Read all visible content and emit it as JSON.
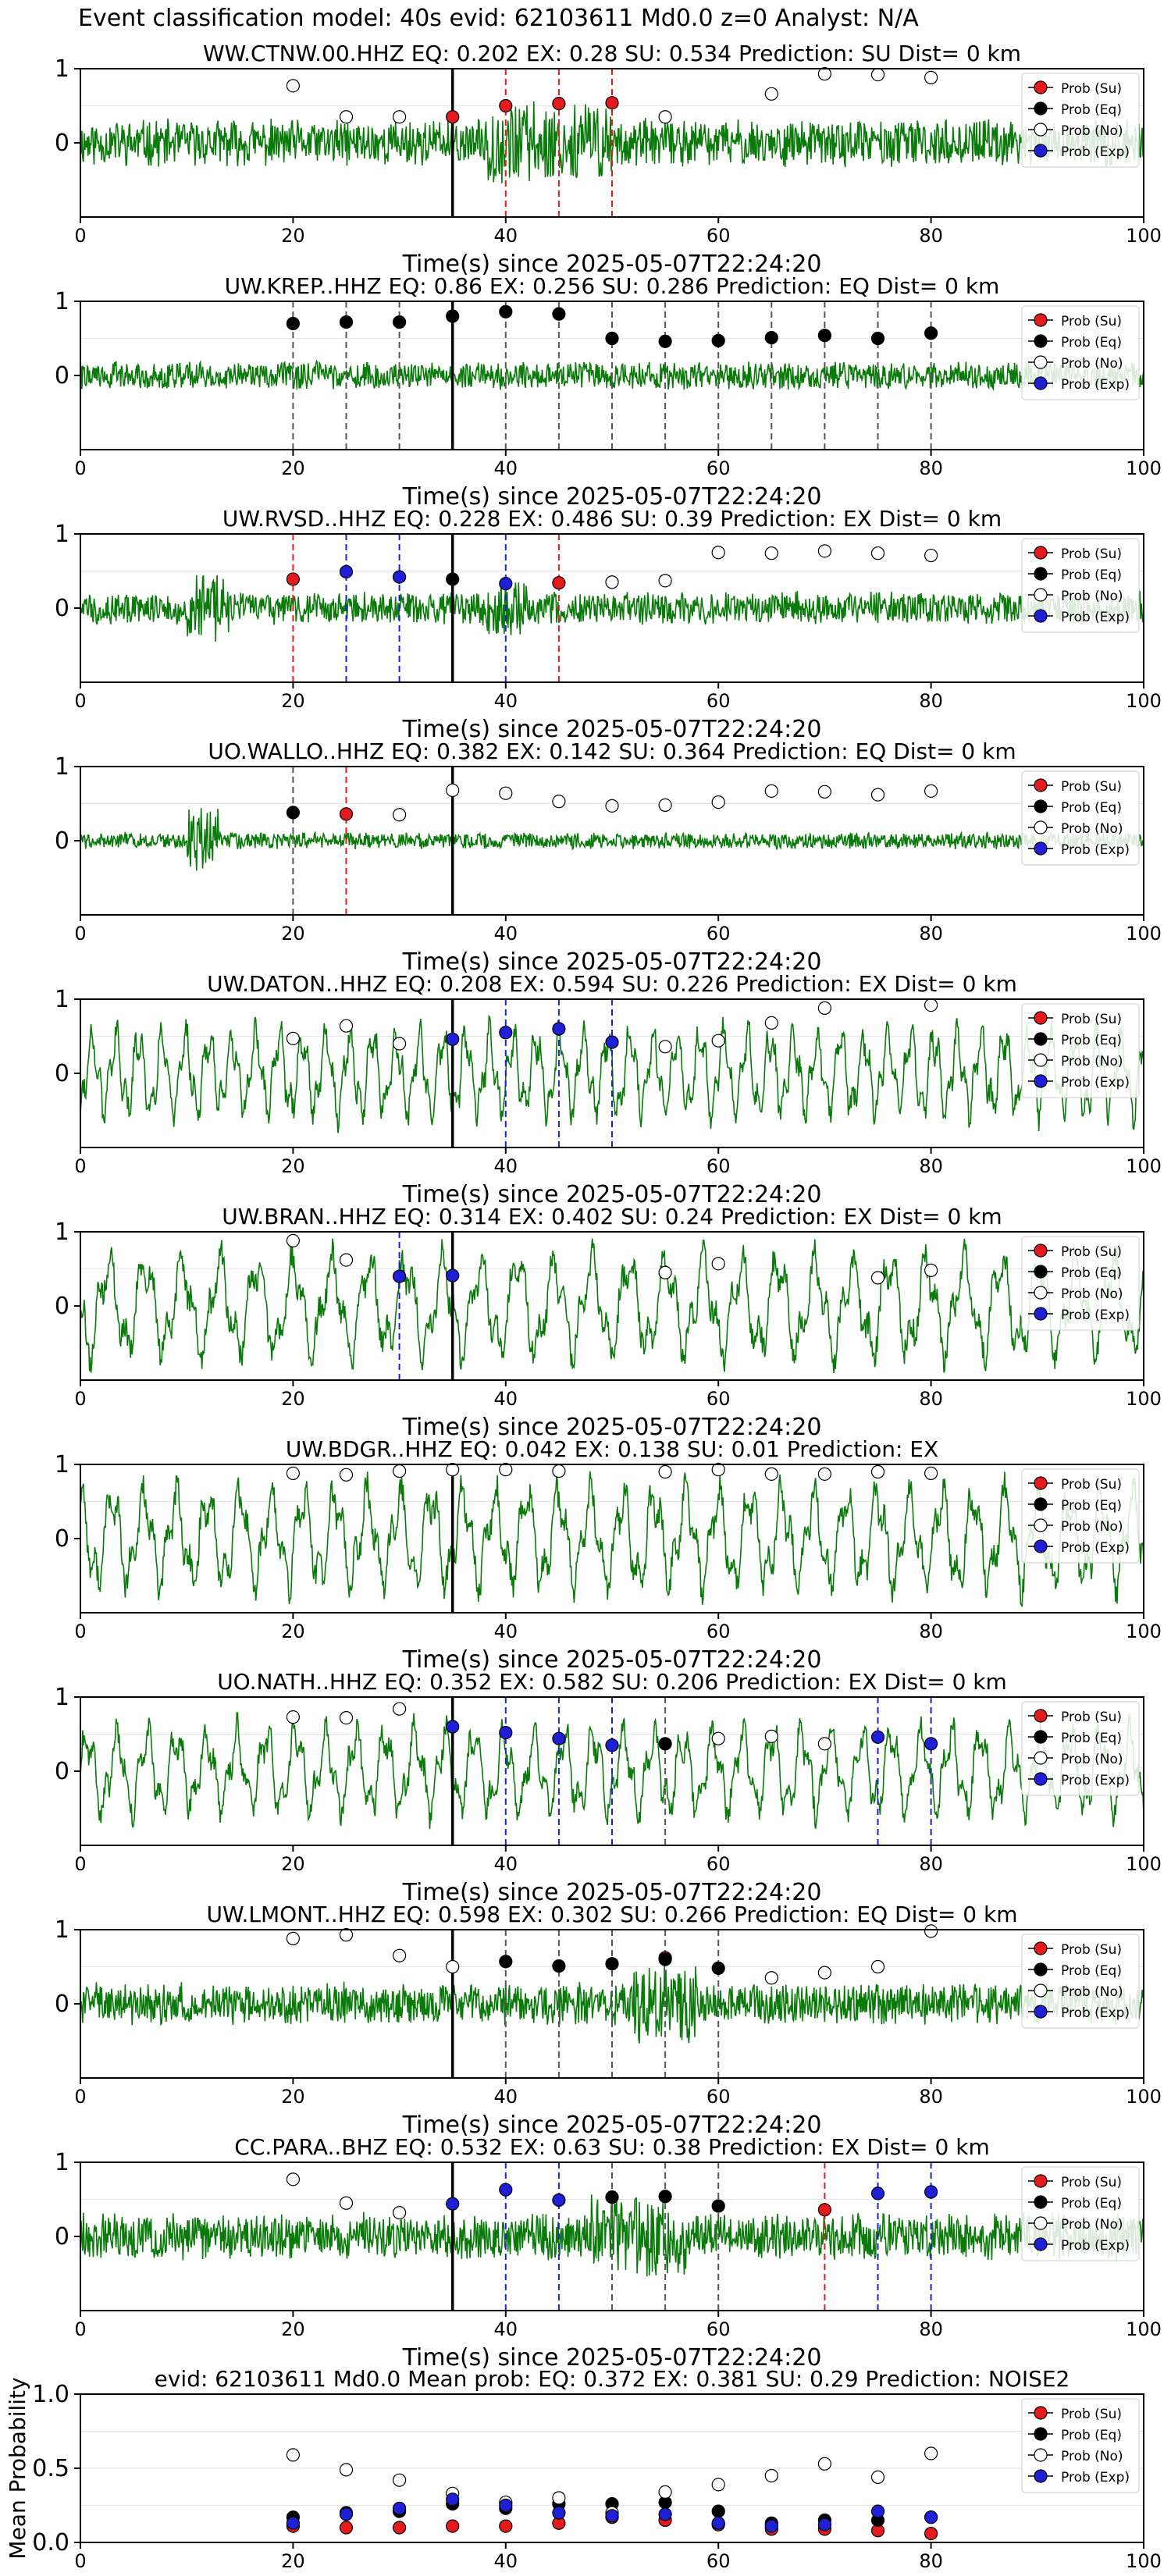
{
  "figure_title": "Event classification model: 40s evid: 62103611 Md0.0 z=0 Analyst: N/A",
  "legend_labels": [
    "Prob (Su)",
    "Prob (Eq)",
    "Prob (No)",
    "Prob (Exp)"
  ],
  "colors": {
    "su": "#e41a1c",
    "eq": "#000000",
    "no": "#ffffff",
    "exp": "#1f1fd6",
    "trace": "#0a7a0a",
    "pick": "#000000"
  },
  "chart_data": [
    {
      "type": "scatter",
      "title": "WW.CTNW.00.HHZ   EQ: 0.202  EX: 0.28  SU: 0.534   Prediction: SU    Dist= 0 km",
      "xlabel": "Time(s) since 2025-05-07T22:24:20",
      "xlim": [
        0,
        100
      ],
      "ylim": [
        -1,
        1
      ],
      "xticks": [
        0,
        20,
        40,
        60,
        80,
        100
      ],
      "yticks": [
        0,
        1
      ],
      "legend": "top-right",
      "pick_line": 35,
      "amp": 0.5,
      "seed": 11,
      "period": 0,
      "points": [
        [
          20,
          "no",
          0.77
        ],
        [
          25,
          "no",
          0.35
        ],
        [
          30,
          "no",
          0.35
        ],
        [
          35,
          "su",
          0.35
        ],
        [
          40,
          "su",
          0.5
        ],
        [
          45,
          "su",
          0.53
        ],
        [
          50,
          "su",
          0.54
        ],
        [
          55,
          "no",
          0.35
        ],
        [
          65,
          "no",
          0.66
        ],
        [
          70,
          "no",
          0.93
        ],
        [
          75,
          "no",
          0.92
        ],
        [
          80,
          "no",
          0.88
        ]
      ],
      "vlines": [
        [
          40,
          "su"
        ],
        [
          45,
          "su"
        ],
        [
          50,
          "su"
        ]
      ]
    },
    {
      "type": "scatter",
      "title": "UW.KREP..HHZ   EQ: 0.86  EX: 0.256  SU: 0.286   Prediction: EQ    Dist= 0 km",
      "xlabel": "Time(s) since 2025-05-07T22:24:20",
      "xlim": [
        0,
        100
      ],
      "ylim": [
        -1,
        1
      ],
      "xticks": [
        0,
        20,
        40,
        60,
        80,
        100
      ],
      "yticks": [
        0,
        1
      ],
      "legend": "top-right",
      "pick_line": 35,
      "amp": 0.3,
      "seed": 22,
      "period": 0,
      "points": [
        [
          20,
          "eq",
          0.7
        ],
        [
          25,
          "eq",
          0.72
        ],
        [
          30,
          "eq",
          0.72
        ],
        [
          35,
          "eq",
          0.8
        ],
        [
          40,
          "eq",
          0.86
        ],
        [
          45,
          "eq",
          0.83
        ],
        [
          50,
          "eq",
          0.5
        ],
        [
          55,
          "eq",
          0.46
        ],
        [
          60,
          "eq",
          0.47
        ],
        [
          65,
          "eq",
          0.51
        ],
        [
          70,
          "eq",
          0.54
        ],
        [
          75,
          "eq",
          0.5
        ],
        [
          80,
          "eq",
          0.57
        ]
      ],
      "vlines": [
        [
          20,
          "eq"
        ],
        [
          25,
          "eq"
        ],
        [
          30,
          "eq"
        ],
        [
          40,
          "eq"
        ],
        [
          45,
          "eq"
        ],
        [
          50,
          "eq"
        ],
        [
          55,
          "eq"
        ],
        [
          60,
          "eq"
        ],
        [
          65,
          "eq"
        ],
        [
          70,
          "eq"
        ],
        [
          75,
          "eq"
        ],
        [
          80,
          "eq"
        ]
      ]
    },
    {
      "type": "scatter",
      "title": "UW.RVSD..HHZ   EQ: 0.228  EX: 0.486  SU: 0.39   Prediction: EX    Dist= 0 km",
      "xlabel": "Time(s) since 2025-05-07T22:24:20",
      "xlim": [
        0,
        100
      ],
      "ylim": [
        -1,
        1
      ],
      "xticks": [
        0,
        20,
        40,
        60,
        80,
        100
      ],
      "yticks": [
        0,
        1
      ],
      "legend": "top-right",
      "pick_line": 35,
      "amp": 0.35,
      "seed": 33,
      "period": 0,
      "points": [
        [
          20,
          "su",
          0.39
        ],
        [
          25,
          "exp",
          0.49
        ],
        [
          30,
          "exp",
          0.42
        ],
        [
          35,
          "eq",
          0.39
        ],
        [
          40,
          "exp",
          0.33
        ],
        [
          45,
          "su",
          0.34
        ],
        [
          50,
          "no",
          0.35
        ],
        [
          55,
          "no",
          0.37
        ],
        [
          60,
          "no",
          0.75
        ],
        [
          65,
          "no",
          0.74
        ],
        [
          70,
          "no",
          0.77
        ],
        [
          75,
          "no",
          0.74
        ],
        [
          80,
          "no",
          0.71
        ]
      ],
      "vlines": [
        [
          20,
          "su"
        ],
        [
          25,
          "exp"
        ],
        [
          30,
          "exp"
        ],
        [
          40,
          "exp"
        ],
        [
          45,
          "su"
        ]
      ]
    },
    {
      "type": "scatter",
      "title": "UO.WALLO..HHZ   EQ: 0.382  EX: 0.142  SU: 0.364   Prediction: EQ     Dist= 0 km",
      "xlabel": "Time(s) since 2025-05-07T22:24:20",
      "xlim": [
        0,
        100
      ],
      "ylim": [
        -1,
        1
      ],
      "xticks": [
        0,
        20,
        40,
        60,
        80,
        100
      ],
      "yticks": [
        0,
        1
      ],
      "legend": "top-right",
      "pick_line": 35,
      "amp": 0.18,
      "seed": 44,
      "period": 0,
      "points": [
        [
          20,
          "eq",
          0.38
        ],
        [
          25,
          "su",
          0.36
        ],
        [
          30,
          "no",
          0.35
        ],
        [
          35,
          "no",
          0.68
        ],
        [
          40,
          "no",
          0.64
        ],
        [
          45,
          "no",
          0.53
        ],
        [
          50,
          "no",
          0.47
        ],
        [
          55,
          "no",
          0.48
        ],
        [
          60,
          "no",
          0.52
        ],
        [
          65,
          "no",
          0.67
        ],
        [
          70,
          "no",
          0.66
        ],
        [
          75,
          "no",
          0.62
        ],
        [
          80,
          "no",
          0.67
        ]
      ],
      "vlines": [
        [
          20,
          "eq"
        ],
        [
          25,
          "su"
        ]
      ]
    },
    {
      "type": "scatter",
      "title": "UW.DATON..HHZ   EQ: 0.208  EX: 0.594  SU: 0.226   Prediction: EX    Dist= 0 km",
      "xlabel": "Time(s) since 2025-05-07T22:24:20",
      "xlim": [
        0,
        100
      ],
      "ylim": [
        -1,
        1
      ],
      "xticks": [
        0,
        20,
        40,
        60,
        80,
        100
      ],
      "yticks": [
        0,
        1
      ],
      "legend": "top-right",
      "pick_line": 35,
      "amp": 0.6,
      "seed": 55,
      "period": 2.2,
      "points": [
        [
          20,
          "no",
          0.47
        ],
        [
          25,
          "no",
          0.64
        ],
        [
          30,
          "no",
          0.4
        ],
        [
          35,
          "exp",
          0.46
        ],
        [
          40,
          "exp",
          0.55
        ],
        [
          45,
          "exp",
          0.6
        ],
        [
          50,
          "exp",
          0.42
        ],
        [
          55,
          "no",
          0.36
        ],
        [
          60,
          "no",
          0.44
        ],
        [
          65,
          "no",
          0.68
        ],
        [
          70,
          "no",
          0.88
        ],
        [
          80,
          "no",
          0.92
        ]
      ],
      "vlines": [
        [
          40,
          "exp"
        ],
        [
          45,
          "exp"
        ],
        [
          50,
          "exp"
        ]
      ]
    },
    {
      "type": "scatter",
      "title": "UW.BRAN..HHZ   EQ: 0.314  EX: 0.402  SU: 0.24   Prediction: EX    Dist= 0 km",
      "xlabel": "Time(s) since 2025-05-07T22:24:20",
      "xlim": [
        0,
        100
      ],
      "ylim": [
        -1,
        1
      ],
      "xticks": [
        0,
        20,
        40,
        60,
        80,
        100
      ],
      "yticks": [
        0,
        1
      ],
      "legend": "top-right",
      "pick_line": 35,
      "amp": 0.7,
      "seed": 66,
      "period": 3.5,
      "points": [
        [
          20,
          "no",
          0.88
        ],
        [
          25,
          "no",
          0.62
        ],
        [
          30,
          "exp",
          0.4
        ],
        [
          35,
          "exp",
          0.41
        ],
        [
          55,
          "no",
          0.45
        ],
        [
          60,
          "no",
          0.57
        ],
        [
          75,
          "no",
          0.38
        ],
        [
          80,
          "no",
          0.48
        ]
      ],
      "vlines": [
        [
          30,
          "exp"
        ]
      ]
    },
    {
      "type": "scatter",
      "title": "UW.BDGR..HHZ   EQ: 0.042  EX: 0.138  SU: 0.01   Prediction: EX",
      "xlabel": "Time(s) since 2025-05-07T22:24:20",
      "xlim": [
        0,
        100
      ],
      "ylim": [
        -1,
        1
      ],
      "xticks": [
        0,
        20,
        40,
        60,
        80,
        100
      ],
      "yticks": [
        0,
        1
      ],
      "legend": "top-right",
      "pick_line": 35,
      "amp": 0.7,
      "seed": 77,
      "period": 3.0,
      "points": [
        [
          20,
          "no",
          0.88
        ],
        [
          25,
          "no",
          0.86
        ],
        [
          30,
          "no",
          0.91
        ],
        [
          35,
          "no",
          0.93
        ],
        [
          40,
          "no",
          0.93
        ],
        [
          45,
          "no",
          0.91
        ],
        [
          55,
          "no",
          0.9
        ],
        [
          60,
          "no",
          0.93
        ],
        [
          65,
          "no",
          0.87
        ],
        [
          70,
          "no",
          0.87
        ],
        [
          75,
          "no",
          0.9
        ],
        [
          80,
          "no",
          0.88
        ]
      ],
      "vlines": []
    },
    {
      "type": "scatter",
      "title": "UO.NATH..HHZ   EQ: 0.352  EX: 0.582  SU: 0.206   Prediction: EX    Dist= 0 km",
      "xlabel": "Time(s) since 2025-05-07T22:24:20",
      "xlim": [
        0,
        100
      ],
      "ylim": [
        -1,
        1
      ],
      "xticks": [
        0,
        20,
        40,
        60,
        80,
        100
      ],
      "yticks": [
        0,
        1
      ],
      "legend": "top-right",
      "pick_line": 35,
      "amp": 0.6,
      "seed": 88,
      "period": 2.8,
      "points": [
        [
          20,
          "no",
          0.73
        ],
        [
          25,
          "no",
          0.72
        ],
        [
          30,
          "no",
          0.84
        ],
        [
          35,
          "exp",
          0.6
        ],
        [
          40,
          "exp",
          0.52
        ],
        [
          45,
          "exp",
          0.44
        ],
        [
          50,
          "exp",
          0.35
        ],
        [
          55,
          "eq",
          0.37
        ],
        [
          60,
          "no",
          0.44
        ],
        [
          65,
          "no",
          0.47
        ],
        [
          70,
          "no",
          0.37
        ],
        [
          75,
          "exp",
          0.46
        ],
        [
          80,
          "exp",
          0.37
        ]
      ],
      "vlines": [
        [
          40,
          "exp"
        ],
        [
          45,
          "exp"
        ],
        [
          50,
          "exp"
        ],
        [
          55,
          "eq"
        ],
        [
          75,
          "exp"
        ],
        [
          80,
          "exp"
        ]
      ]
    },
    {
      "type": "scatter",
      "title": "UW.LMONT..HHZ   EQ: 0.598  EX: 0.302  SU: 0.266   Prediction: EQ    Dist= 0 km",
      "xlabel": "Time(s) since 2025-05-07T22:24:20",
      "xlim": [
        0,
        100
      ],
      "ylim": [
        -1,
        1
      ],
      "xticks": [
        0,
        20,
        40,
        60,
        80,
        100
      ],
      "yticks": [
        0,
        1
      ],
      "legend": "top-right",
      "pick_line": 35,
      "amp": 0.45,
      "seed": 99,
      "period": 0,
      "points": [
        [
          20,
          "no",
          0.88
        ],
        [
          25,
          "no",
          0.93
        ],
        [
          30,
          "no",
          0.65
        ],
        [
          35,
          "no",
          0.5
        ],
        [
          40,
          "eq",
          0.57
        ],
        [
          45,
          "eq",
          0.51
        ],
        [
          50,
          "eq",
          0.54
        ],
        [
          55,
          "su",
          0.62
        ],
        [
          55,
          "eq",
          0.6
        ],
        [
          60,
          "eq",
          0.48
        ],
        [
          65,
          "no",
          0.35
        ],
        [
          70,
          "no",
          0.42
        ],
        [
          75,
          "no",
          0.5
        ],
        [
          80,
          "no",
          0.98
        ]
      ],
      "vlines": [
        [
          40,
          "eq"
        ],
        [
          45,
          "eq"
        ],
        [
          50,
          "eq"
        ],
        [
          55,
          "eq"
        ],
        [
          60,
          "eq"
        ]
      ]
    },
    {
      "type": "scatter",
      "title": "CC.PARA..BHZ   EQ: 0.532  EX: 0.63  SU: 0.38   Prediction: EX    Dist= 0 km",
      "xlabel": "Time(s) since 2025-05-07T22:24:20",
      "xlim": [
        0,
        100
      ],
      "ylim": [
        -1,
        1
      ],
      "xticks": [
        0,
        20,
        40,
        60,
        80,
        100
      ],
      "yticks": [
        0,
        1
      ],
      "legend": "top-right",
      "pick_line": 35,
      "amp": 0.5,
      "seed": 111,
      "period": 0,
      "points": [
        [
          20,
          "no",
          0.77
        ],
        [
          25,
          "no",
          0.45
        ],
        [
          30,
          "no",
          0.32
        ],
        [
          35,
          "exp",
          0.44
        ],
        [
          40,
          "exp",
          0.63
        ],
        [
          45,
          "exp",
          0.49
        ],
        [
          50,
          "eq",
          0.53
        ],
        [
          55,
          "eq",
          0.54
        ],
        [
          60,
          "eq",
          0.41
        ],
        [
          70,
          "su",
          0.36
        ],
        [
          75,
          "exp",
          0.58
        ],
        [
          80,
          "exp",
          0.6
        ]
      ],
      "vlines": [
        [
          40,
          "exp"
        ],
        [
          45,
          "exp"
        ],
        [
          50,
          "eq"
        ],
        [
          55,
          "eq"
        ],
        [
          60,
          "eq"
        ],
        [
          70,
          "su"
        ],
        [
          75,
          "exp"
        ],
        [
          80,
          "exp"
        ]
      ]
    },
    {
      "type": "scatter",
      "title": "evid: 62103611  Md0.0   Mean prob:   EQ: 0.372  EX: 0.381  SU: 0.29   Prediction: NOISE2",
      "xlabel": "",
      "ylabel": "Mean Probability",
      "xlim": [
        0,
        100
      ],
      "ylim": [
        0,
        1
      ],
      "xticks": [
        0,
        20,
        40,
        60,
        80,
        100
      ],
      "yticks": [
        0.0,
        0.5,
        1.0
      ],
      "yticklabels": [
        "0.0",
        "0.5",
        "1.0"
      ],
      "legend": "top-right",
      "series": [
        {
          "name": "Prob (Su)",
          "key": "su",
          "x": [
            20,
            25,
            30,
            35,
            40,
            45,
            50,
            55,
            60,
            65,
            70,
            75,
            80
          ],
          "values": [
            0.11,
            0.1,
            0.1,
            0.11,
            0.11,
            0.13,
            0.17,
            0.15,
            0.12,
            0.09,
            0.09,
            0.08,
            0.06
          ]
        },
        {
          "name": "Prob (Eq)",
          "key": "eq",
          "x": [
            20,
            25,
            30,
            35,
            40,
            45,
            50,
            55,
            60,
            65,
            70,
            75,
            80
          ],
          "values": [
            0.17,
            0.2,
            0.21,
            0.26,
            0.23,
            0.26,
            0.26,
            0.27,
            0.21,
            0.13,
            0.15,
            0.15,
            0.17
          ]
        },
        {
          "name": "Prob (No)",
          "key": "no",
          "x": [
            20,
            25,
            30,
            35,
            40,
            45,
            50,
            55,
            60,
            65,
            70,
            75,
            80
          ],
          "values": [
            0.59,
            0.49,
            0.42,
            0.33,
            0.27,
            0.3,
            0.2,
            0.34,
            0.39,
            0.45,
            0.53,
            0.44,
            0.6
          ]
        },
        {
          "name": "Prob (Exp)",
          "key": "exp",
          "x": [
            20,
            25,
            30,
            35,
            40,
            45,
            50,
            55,
            60,
            65,
            70,
            75,
            80
          ],
          "values": [
            0.13,
            0.19,
            0.23,
            0.29,
            0.25,
            0.2,
            0.18,
            0.19,
            0.13,
            0.11,
            0.12,
            0.21,
            0.17
          ]
        }
      ]
    }
  ]
}
